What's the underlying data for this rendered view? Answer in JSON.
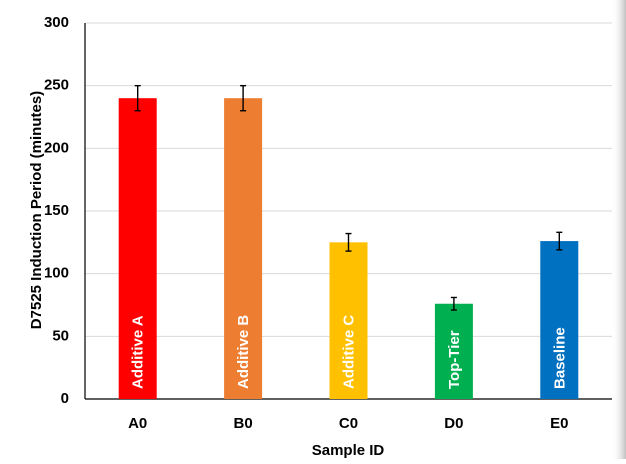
{
  "chart_data": {
    "type": "bar",
    "title": "",
    "xlabel": "Sample ID",
    "ylabel": "D7525 Induction Period (minutes)",
    "ylim": [
      0,
      300
    ],
    "yticks": [
      0,
      50,
      100,
      150,
      200,
      250,
      300
    ],
    "grid": true,
    "legend": "none",
    "categories": [
      "A0",
      "B0",
      "C0",
      "D0",
      "E0"
    ],
    "values": [
      240,
      240,
      125,
      76,
      126
    ],
    "errors": [
      10,
      10,
      7,
      5,
      7
    ],
    "bar_labels": [
      "Additive A",
      "Additive B",
      "Additive C",
      "Top-Tier",
      "Baseline"
    ],
    "colors": [
      "#FF0000",
      "#ED7D31",
      "#FFC000",
      "#00B050",
      "#0070C0"
    ]
  }
}
